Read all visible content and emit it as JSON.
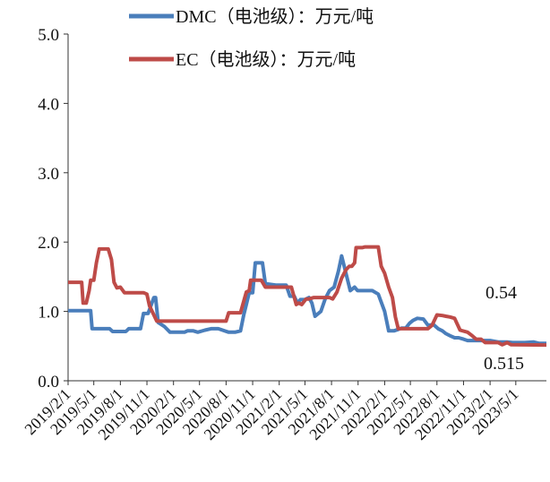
{
  "chart_data": {
    "type": "line",
    "title": "",
    "xlabel": "",
    "ylabel": "",
    "ylim": [
      0,
      5
    ],
    "yticks": [
      "0.0",
      "1.0",
      "2.0",
      "3.0",
      "4.0",
      "5.0"
    ],
    "xlim": [
      "2019-02-01",
      "2023-08-15"
    ],
    "xtick_labels": [
      "2019/2/1",
      "2019/5/1",
      "2019/8/1",
      "2019/11/1",
      "2020/2/1",
      "2020/5/1",
      "2020/8/1",
      "2020/11/1",
      "2021/2/1",
      "2021/5/1",
      "2021/8/1",
      "2021/11/1",
      "2022/2/1",
      "2022/5/1",
      "2022/8/1",
      "2022/11/1",
      "2023/2/1",
      "2023/5/1"
    ],
    "grid": false,
    "legend_position": "top",
    "series": [
      {
        "name": "DMC（电池级）：万元/吨",
        "color": "#4a7ebb",
        "x": [
          "2019-02-01",
          "2019-04-20",
          "2019-04-25",
          "2019-06-25",
          "2019-07-05",
          "2019-08-20",
          "2019-08-30",
          "2019-10-10",
          "2019-10-20",
          "2019-11-05",
          "2019-11-25",
          "2019-12-01",
          "2019-12-10",
          "2020-01-01",
          "2020-01-20",
          "2020-03-10",
          "2020-03-20",
          "2020-04-10",
          "2020-04-25",
          "2020-05-20",
          "2020-06-10",
          "2020-07-05",
          "2020-08-10",
          "2020-08-20",
          "2020-09-01",
          "2020-09-20",
          "2020-10-01",
          "2020-10-10",
          "2020-10-20",
          "2020-11-01",
          "2020-11-10",
          "2020-12-05",
          "2020-12-15",
          "2021-01-20",
          "2021-02-01",
          "2021-02-25",
          "2021-03-10",
          "2021-03-25",
          "2021-04-05",
          "2021-04-15",
          "2021-05-01",
          "2021-05-15",
          "2021-05-25",
          "2021-06-05",
          "2021-06-25",
          "2021-07-10",
          "2021-07-25",
          "2021-08-10",
          "2021-08-25",
          "2021-09-05",
          "2021-09-20",
          "2021-10-05",
          "2021-10-20",
          "2021-10-30",
          "2021-11-05",
          "2021-11-15",
          "2021-11-25",
          "2021-12-05",
          "2021-12-20",
          "2022-01-10",
          "2022-02-01",
          "2022-02-15",
          "2022-03-05",
          "2022-03-20",
          "2022-04-01",
          "2022-04-15",
          "2022-04-28",
          "2022-05-10",
          "2022-05-25",
          "2022-06-15",
          "2022-07-01",
          "2022-07-20",
          "2022-08-05",
          "2022-08-20",
          "2022-09-01",
          "2022-09-15",
          "2022-10-01",
          "2022-10-15",
          "2022-11-01",
          "2022-11-15",
          "2022-12-01",
          "2022-12-15",
          "2023-01-01",
          "2023-01-15",
          "2023-02-01",
          "2023-03-01",
          "2023-04-01",
          "2023-04-20",
          "2023-05-10",
          "2023-06-01",
          "2023-07-01",
          "2023-07-20",
          "2023-08-15"
        ],
        "y": [
          1.01,
          1.01,
          0.75,
          0.75,
          0.71,
          0.71,
          0.75,
          0.75,
          0.97,
          0.97,
          1.2,
          1.2,
          0.84,
          0.78,
          0.7,
          0.7,
          0.72,
          0.72,
          0.7,
          0.73,
          0.75,
          0.75,
          0.7,
          0.7,
          0.7,
          0.72,
          0.95,
          1.1,
          1.27,
          1.27,
          1.7,
          1.7,
          1.4,
          1.38,
          1.38,
          1.38,
          1.22,
          1.22,
          1.12,
          1.17,
          1.17,
          1.2,
          1.12,
          0.93,
          1.0,
          1.18,
          1.3,
          1.35,
          1.58,
          1.8,
          1.55,
          1.3,
          1.35,
          1.3,
          1.3,
          1.3,
          1.3,
          1.3,
          1.3,
          1.25,
          1.0,
          0.72,
          0.72,
          0.74,
          0.76,
          0.76,
          0.83,
          0.87,
          0.9,
          0.89,
          0.8,
          0.81,
          0.75,
          0.72,
          0.68,
          0.65,
          0.62,
          0.62,
          0.6,
          0.58,
          0.58,
          0.58,
          0.58,
          0.58,
          0.58,
          0.56,
          0.56,
          0.55,
          0.55,
          0.55,
          0.56,
          0.54,
          0.54
        ]
      },
      {
        "name": "EC（电池级）：万元/吨",
        "color": "#be4b48",
        "x": [
          "2019-02-01",
          "2019-03-20",
          "2019-03-25",
          "2019-04-05",
          "2019-04-15",
          "2019-04-20",
          "2019-05-01",
          "2019-05-10",
          "2019-05-20",
          "2019-06-20",
          "2019-07-01",
          "2019-07-10",
          "2019-07-20",
          "2019-08-01",
          "2019-08-15",
          "2019-10-20",
          "2019-11-01",
          "2019-11-10",
          "2019-12-05",
          "2020-08-01",
          "2020-08-10",
          "2020-09-10",
          "2020-09-20",
          "2020-10-10",
          "2020-10-20",
          "2020-10-25",
          "2020-12-01",
          "2020-12-15",
          "2021-03-01",
          "2021-03-15",
          "2021-04-01",
          "2021-04-10",
          "2021-04-20",
          "2021-05-05",
          "2021-05-15",
          "2021-06-01",
          "2021-07-15",
          "2021-07-25",
          "2021-08-05",
          "2021-08-20",
          "2021-09-05",
          "2021-09-20",
          "2021-10-01",
          "2021-10-10",
          "2021-10-20",
          "2021-10-25",
          "2021-11-15",
          "2021-11-25",
          "2022-01-10",
          "2022-01-20",
          "2022-02-01",
          "2022-02-15",
          "2022-02-28",
          "2022-03-10",
          "2022-03-20",
          "2022-04-01",
          "2022-04-15",
          "2022-07-01",
          "2022-07-15",
          "2022-08-01",
          "2022-08-20",
          "2022-09-01",
          "2022-09-15",
          "2022-10-01",
          "2022-10-20",
          "2022-11-15",
          "2022-12-01",
          "2022-12-15",
          "2023-01-01",
          "2023-01-15",
          "2023-03-01",
          "2023-03-15",
          "2023-04-01",
          "2023-04-15",
          "2023-08-15"
        ],
        "y": [
          1.42,
          1.42,
          1.12,
          1.12,
          1.3,
          1.45,
          1.45,
          1.7,
          1.9,
          1.9,
          1.75,
          1.42,
          1.34,
          1.35,
          1.27,
          1.27,
          1.25,
          1.08,
          0.86,
          0.86,
          0.98,
          0.98,
          0.98,
          1.28,
          1.3,
          1.45,
          1.45,
          1.35,
          1.35,
          1.35,
          1.1,
          1.12,
          1.1,
          1.18,
          1.18,
          1.2,
          1.2,
          1.2,
          1.18,
          1.28,
          1.48,
          1.6,
          1.65,
          1.65,
          1.7,
          1.92,
          1.92,
          1.93,
          1.93,
          1.65,
          1.55,
          1.35,
          1.2,
          0.92,
          0.75,
          0.75,
          0.75,
          0.75,
          0.8,
          0.95,
          0.94,
          0.93,
          0.92,
          0.9,
          0.73,
          0.7,
          0.65,
          0.6,
          0.6,
          0.55,
          0.55,
          0.52,
          0.55,
          0.52,
          0.515
        ]
      }
    ],
    "annotations": [
      "0.54",
      "0.515"
    ]
  }
}
